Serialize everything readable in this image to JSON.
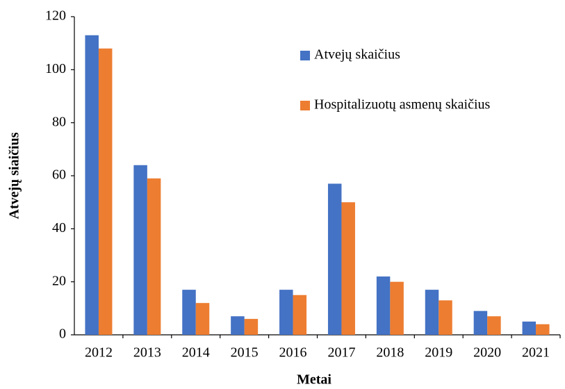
{
  "chart_data": {
    "type": "bar",
    "categories": [
      "2012",
      "2013",
      "2014",
      "2015",
      "2016",
      "2017",
      "2018",
      "2019",
      "2020",
      "2021"
    ],
    "series": [
      {
        "name": "Atvejų skaičius",
        "color": "#4472c4",
        "values": [
          113,
          64,
          17,
          7,
          17,
          57,
          22,
          17,
          9,
          5
        ]
      },
      {
        "name": "Hospitalizuotų asmenų skaičius",
        "color": "#ed7d31",
        "values": [
          108,
          59,
          12,
          6,
          15,
          50,
          20,
          13,
          7,
          4
        ]
      }
    ],
    "ylim": [
      0,
      120
    ],
    "yticks": [
      0,
      20,
      40,
      60,
      80,
      100,
      120
    ],
    "y_label": "Atvejų siaičius",
    "x_label": "Metai",
    "legend": "upper right",
    "grid": false
  }
}
